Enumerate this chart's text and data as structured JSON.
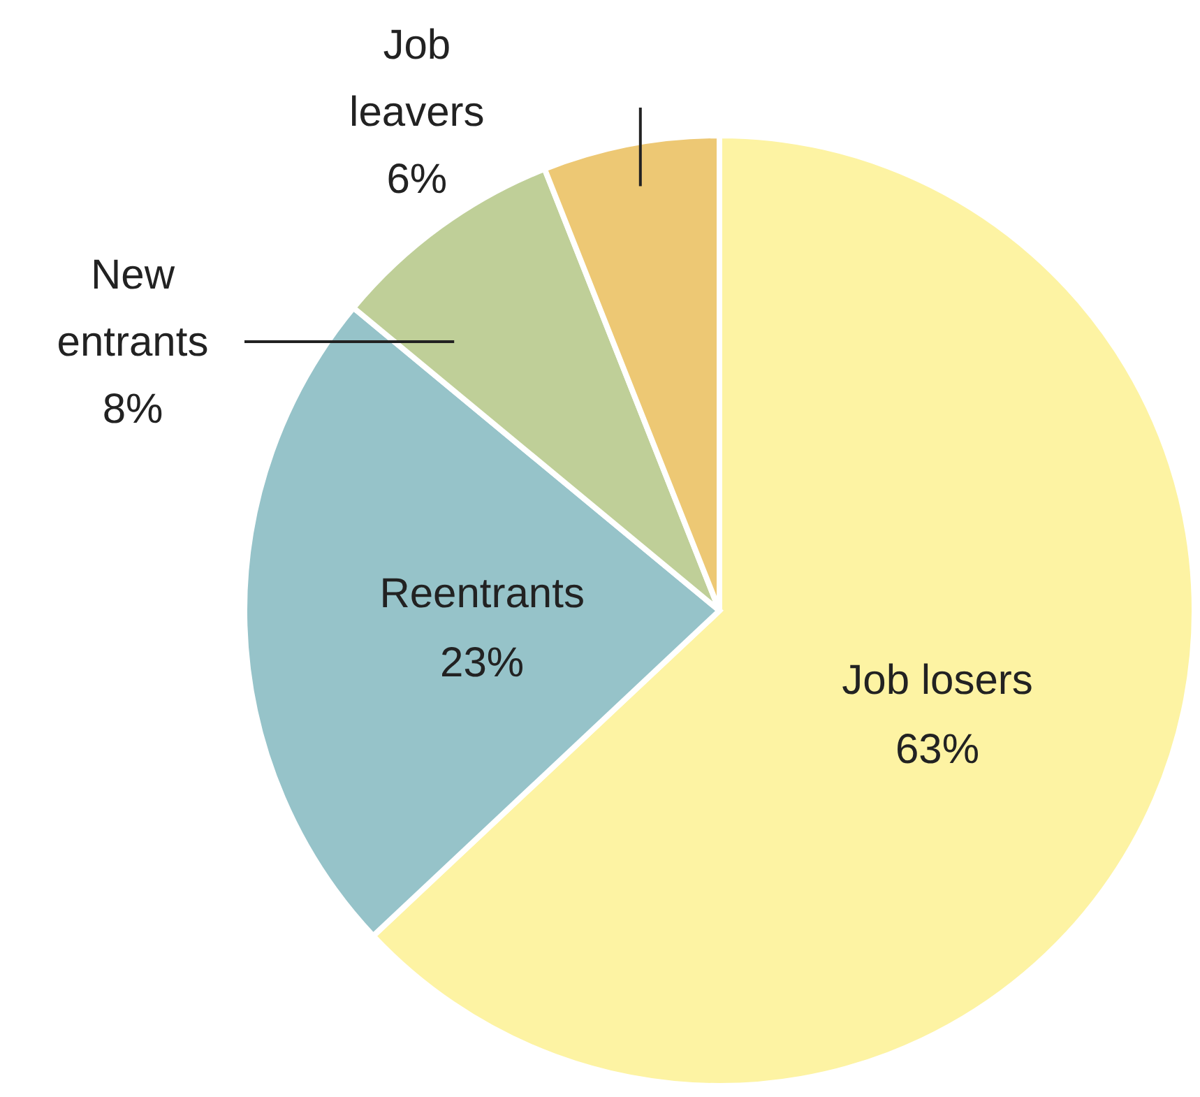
{
  "chart_data": {
    "type": "pie",
    "categories": [
      "Job losers",
      "Reentrants",
      "New entrants",
      "Job leavers"
    ],
    "values": [
      63,
      23,
      8,
      6
    ],
    "colors": [
      "#fdf3a3",
      "#96c3c9",
      "#bfcf98",
      "#edc874"
    ],
    "value_labels": [
      "63%",
      "23%",
      "8%",
      "6%"
    ]
  }
}
